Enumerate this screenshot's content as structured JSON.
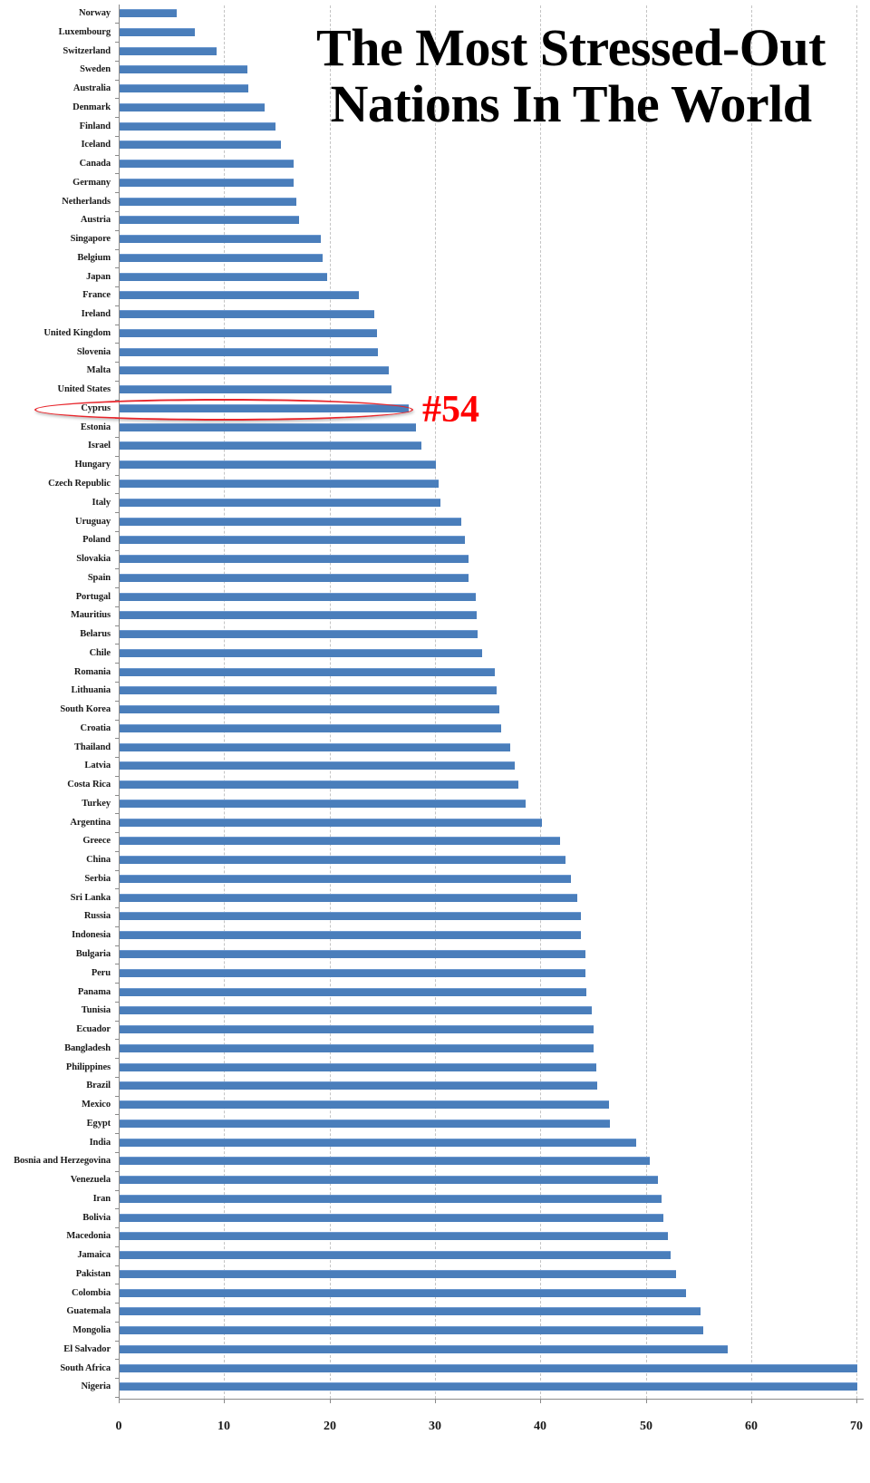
{
  "chart_data": {
    "type": "bar",
    "orientation": "horizontal",
    "title": "The Most Stressed-Out Nations In The World",
    "title_lines": [
      "The Most Stressed-Out",
      "Nations In The World"
    ],
    "xlabel": "",
    "ylabel": "",
    "xlim": [
      0,
      70
    ],
    "x_ticks": [
      0,
      10,
      20,
      30,
      40,
      50,
      60,
      70
    ],
    "grid": "vertical dashed",
    "legend": "none",
    "bar_color": "#4a7ebb",
    "annotation": {
      "text": "#54",
      "target": "United States",
      "color": "#ff0000"
    },
    "categories": [
      "Norway",
      "Luxembourg",
      "Switzerland",
      "Sweden",
      "Australia",
      "Denmark",
      "Finland",
      "Iceland",
      "Canada",
      "Germany",
      "Netherlands",
      "Austria",
      "Singapore",
      "Belgium",
      "Japan",
      "France",
      "Ireland",
      "United Kingdom",
      "Slovenia",
      "Malta",
      "United States",
      "Cyprus",
      "Estonia",
      "Israel",
      "Hungary",
      "Czech Republic",
      "Italy",
      "Uruguay",
      "Poland",
      "Slovakia",
      "Spain",
      "Portugal",
      "Mauritius",
      "Belarus",
      "Chile",
      "Romania",
      "Lithuania",
      "South Korea",
      "Croatia",
      "Thailand",
      "Latvia",
      "Costa Rica",
      "Turkey",
      "Argentina",
      "Greece",
      "China",
      "Serbia",
      "Sri Lanka",
      "Russia",
      "Indonesia",
      "Bulgaria",
      "Peru",
      "Panama",
      "Tunisia",
      "Ecuador",
      "Bangladesh",
      "Philippines",
      "Brazil",
      "Mexico",
      "Egypt",
      "India",
      "Bosnia and Herzegovina",
      "Venezuela",
      "Iran",
      "Bolivia",
      "Macedonia",
      "Jamaica",
      "Pakistan",
      "Colombia",
      "Guatemala",
      "Mongolia",
      "El Salvador",
      "South Africa",
      "Nigeria"
    ],
    "values": [
      5.4,
      7.1,
      9.2,
      12.1,
      12.2,
      13.8,
      14.8,
      15.3,
      16.5,
      16.5,
      16.8,
      17.0,
      19.1,
      19.3,
      19.7,
      22.7,
      24.2,
      24.4,
      24.5,
      25.5,
      25.8,
      27.4,
      28.1,
      28.6,
      30.0,
      30.3,
      30.4,
      32.4,
      32.8,
      33.1,
      33.1,
      33.8,
      33.9,
      34.0,
      34.4,
      35.6,
      35.8,
      36.0,
      36.2,
      37.1,
      37.5,
      37.8,
      38.5,
      40.1,
      41.8,
      42.3,
      42.8,
      43.4,
      43.8,
      43.8,
      44.2,
      44.2,
      44.3,
      44.8,
      45.0,
      45.0,
      45.2,
      45.3,
      46.4,
      46.5,
      49.0,
      50.3,
      51.1,
      51.4,
      51.6,
      52.0,
      52.3,
      52.8,
      53.7,
      55.1,
      55.4,
      57.7,
      70.0,
      70.0
    ]
  },
  "title": {
    "line1": "The Most Stressed-Out",
    "line2": "Nations In The World"
  },
  "annotation": {
    "rank": "#54"
  }
}
